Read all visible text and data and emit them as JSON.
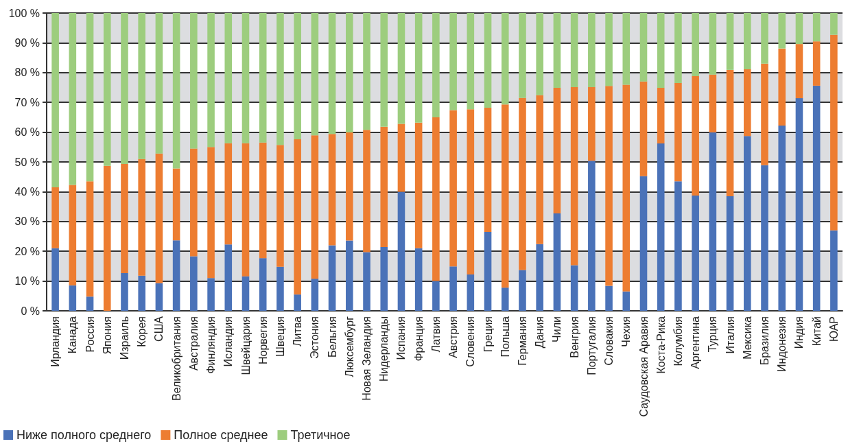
{
  "chart_data": {
    "type": "bar",
    "stacked": true,
    "grid": true,
    "legend": "bottom left",
    "categories": [
      "Ирландия",
      "Канада",
      "Россия",
      "Япония",
      "Израиль",
      "Корея",
      "США",
      "Великобритания",
      "Австралия",
      "Финляндия",
      "Исландия",
      "Швейцария",
      "Норвегия",
      "Швеция",
      "Литва",
      "Эстония",
      "Бельгия",
      "Люксембург",
      "Новая Зеландия",
      "Нидерланды",
      "Испания",
      "Франция",
      "Латвия",
      "Австрия",
      "Словения",
      "Греция",
      "Польша",
      "Германия",
      "Дания",
      "Чили",
      "Венгрия",
      "Португалия",
      "Словакия",
      "Чехия",
      "Саудовская Аравия",
      "Коста-Рика",
      "Колумбия",
      "Аргентина",
      "Турция",
      "Италия",
      "Мексика",
      "Бразилия",
      "Индонезия",
      "Индия",
      "Китай",
      "ЮАР"
    ],
    "ylim": [
      0,
      100
    ],
    "yticks": [
      {
        "value": 0,
        "label": "0 %"
      },
      {
        "value": 10,
        "label": "10 %"
      },
      {
        "value": 20,
        "label": "20 %"
      },
      {
        "value": 30,
        "label": "30 %"
      },
      {
        "value": 40,
        "label": "40 %"
      },
      {
        "value": 50,
        "label": "50 %"
      },
      {
        "value": 60,
        "label": "60 %"
      },
      {
        "value": 70,
        "label": "70 %"
      },
      {
        "value": 80,
        "label": "80 %"
      },
      {
        "value": 90,
        "label": "90 %"
      },
      {
        "value": 100,
        "label": "100 %"
      }
    ],
    "series": [
      {
        "name": "Ниже полного среднего",
        "color": "#4a72b8",
        "values": [
          21.0,
          8.5,
          4.8,
          0,
          12.7,
          11.8,
          9.3,
          23.7,
          18.3,
          11.0,
          22.3,
          11.6,
          17.7,
          14.8,
          5.5,
          10.8,
          22.0,
          23.6,
          19.7,
          21.4,
          40.0,
          21.0,
          10.0,
          14.9,
          12.2,
          26.5,
          7.8,
          13.7,
          22.4,
          32.7,
          15.3,
          50.4,
          8.4,
          6.5,
          45.2,
          56.2,
          43.5,
          38.7,
          59.9,
          38.5,
          58.7,
          48.9,
          62.2,
          71.4,
          75.6,
          27.0
        ]
      },
      {
        "name": "Полное среднее",
        "color": "#ed7d31",
        "values": [
          20.5,
          33.8,
          38.7,
          48.7,
          36.6,
          39.2,
          43.5,
          24.1,
          36.2,
          44.0,
          34.0,
          44.7,
          38.8,
          40.9,
          52.1,
          48.1,
          37.4,
          36.3,
          41.1,
          40.4,
          22.8,
          42.2,
          55.0,
          52.5,
          55.5,
          41.7,
          61.5,
          57.8,
          50.0,
          42.2,
          59.8,
          24.7,
          67.1,
          69.4,
          31.8,
          18.7,
          33.0,
          40.1,
          19.4,
          42.4,
          22.4,
          34.1,
          25.9,
          18.2,
          14.9,
          65.7
        ]
      },
      {
        "name": "Третичное",
        "color": "#9dcd7e",
        "values": [
          58.5,
          57.7,
          56.5,
          51.3,
          50.7,
          49.0,
          47.2,
          52.2,
          45.5,
          45.0,
          43.7,
          43.7,
          43.5,
          44.3,
          42.4,
          41.1,
          40.6,
          40.1,
          39.2,
          38.2,
          37.2,
          36.8,
          35.0,
          32.6,
          32.3,
          31.8,
          30.7,
          28.5,
          27.6,
          25.1,
          24.9,
          24.9,
          24.5,
          24.1,
          23.0,
          25.1,
          23.5,
          21.2,
          20.7,
          19.1,
          18.9,
          17.0,
          11.9,
          10.4,
          9.5,
          7.3
        ]
      }
    ]
  }
}
